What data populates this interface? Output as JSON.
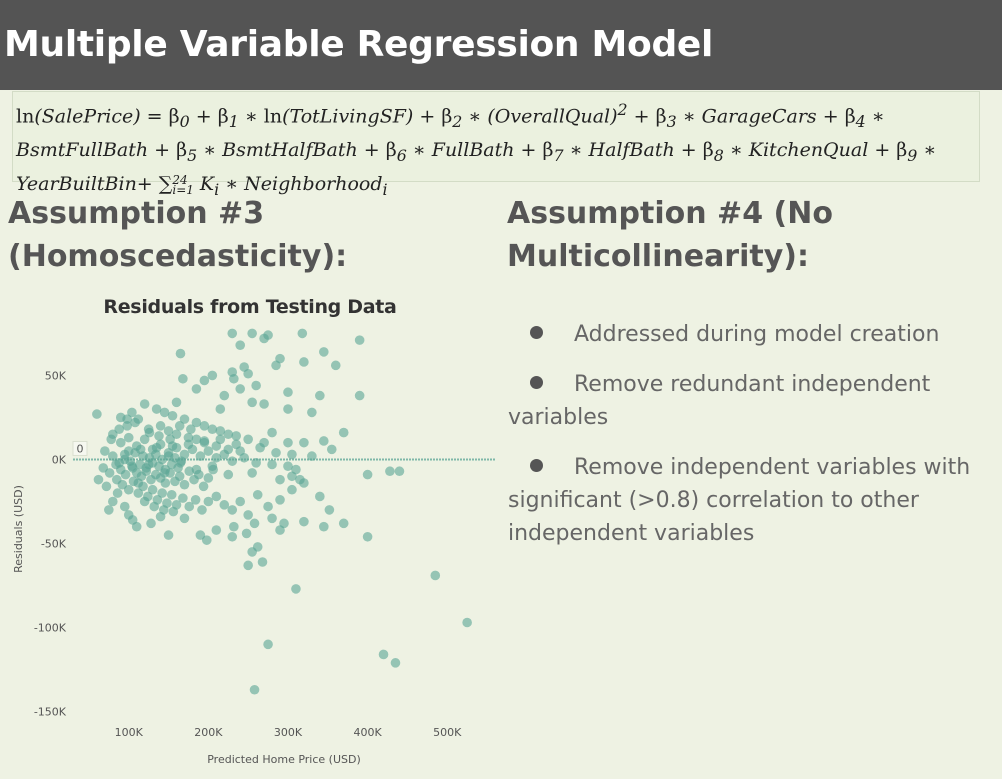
{
  "header": {
    "title": "Multiple Variable Regression Model"
  },
  "formula": {
    "lines": [
      "ln(SalePrice) = β₀ + β₁ ∗ ln(TotLivingSF) + β₂ ∗ (OverallQual)² + β₃ ∗ GarageCars + β₄ ∗",
      "BsmtFullBath + β₅ ∗ BsmtHalfBath + β₆ ∗ FullBath + β₇ ∗ HalfBath + β₈ ∗ KitchenQual + β₉ ∗",
      "YearBuiltBin+ ∑ᵢ₌₁²⁴ Kᵢ ∗ Neighborhoodᵢ"
    ]
  },
  "assumption3": {
    "heading": "Assumption #3 (Homoscedasticity):"
  },
  "assumption4": {
    "heading": "Assumption #4 (No Multicollinearity):",
    "bullets": [
      "Addressed during model creation",
      "Remove redundant independent variables",
      "Remove independent variables with significant (>0.8) correlation to other independent variables"
    ]
  },
  "colors": {
    "point": "#5aa595",
    "reference_line": "#7fb8a8",
    "title_bar": "#545454",
    "background": "#eef2e3"
  },
  "chart_data": {
    "type": "scatter",
    "title": "Residuals from Testing Data",
    "xlabel": "Predicted Home Price (USD)",
    "ylabel": "Residuals (USD)",
    "xlim": [
      30000,
      560000
    ],
    "ylim": [
      -155000,
      80000
    ],
    "x_ticks": [
      100000,
      200000,
      300000,
      400000,
      500000
    ],
    "x_tick_labels": [
      "100K",
      "200K",
      "300K",
      "400K",
      "500K"
    ],
    "y_ticks": [
      50000,
      0,
      -50000,
      -100000,
      -150000
    ],
    "y_tick_labels": [
      "50K",
      "0K",
      "-50K",
      "-100K",
      "-150K"
    ],
    "reference_line": {
      "y": 0,
      "label": "0"
    },
    "points": [
      [
        230000,
        75000
      ],
      [
        255000,
        75000
      ],
      [
        275000,
        74000
      ],
      [
        318000,
        75000
      ],
      [
        390000,
        71000
      ],
      [
        270000,
        72000
      ],
      [
        240000,
        68000
      ],
      [
        345000,
        64000
      ],
      [
        165000,
        63000
      ],
      [
        290000,
        60000
      ],
      [
        360000,
        56000
      ],
      [
        245000,
        55000
      ],
      [
        285000,
        56000
      ],
      [
        320000,
        58000
      ],
      [
        230000,
        52000
      ],
      [
        250000,
        51000
      ],
      [
        205000,
        50000
      ],
      [
        232000,
        48000
      ],
      [
        195000,
        47000
      ],
      [
        260000,
        44000
      ],
      [
        168000,
        48000
      ],
      [
        185000,
        42000
      ],
      [
        240000,
        42000
      ],
      [
        300000,
        40000
      ],
      [
        340000,
        38000
      ],
      [
        390000,
        38000
      ],
      [
        220000,
        38000
      ],
      [
        255000,
        34000
      ],
      [
        160000,
        34000
      ],
      [
        215000,
        30000
      ],
      [
        270000,
        33000
      ],
      [
        300000,
        30000
      ],
      [
        330000,
        28000
      ],
      [
        120000,
        33000
      ],
      [
        135000,
        30000
      ],
      [
        145000,
        28000
      ],
      [
        155000,
        26000
      ],
      [
        170000,
        24000
      ],
      [
        185000,
        22000
      ],
      [
        195000,
        20000
      ],
      [
        205000,
        18000
      ],
      [
        215000,
        17000
      ],
      [
        225000,
        15000
      ],
      [
        235000,
        14000
      ],
      [
        250000,
        12000
      ],
      [
        280000,
        16000
      ],
      [
        300000,
        10000
      ],
      [
        320000,
        10000
      ],
      [
        345000,
        11000
      ],
      [
        370000,
        16000
      ],
      [
        60000,
        27000
      ],
      [
        90000,
        25000
      ],
      [
        98000,
        20000
      ],
      [
        108000,
        22000
      ],
      [
        112000,
        24000
      ],
      [
        125000,
        18000
      ],
      [
        140000,
        20000
      ],
      [
        150000,
        17000
      ],
      [
        160000,
        15000
      ],
      [
        175000,
        13000
      ],
      [
        185000,
        12000
      ],
      [
        195000,
        10000
      ],
      [
        210000,
        8000
      ],
      [
        225000,
        6000
      ],
      [
        240000,
        5000
      ],
      [
        265000,
        7000
      ],
      [
        285000,
        4000
      ],
      [
        305000,
        3000
      ],
      [
        330000,
        2000
      ],
      [
        355000,
        6000
      ],
      [
        80000,
        15000
      ],
      [
        90000,
        10000
      ],
      [
        100000,
        13000
      ],
      [
        110000,
        8000
      ],
      [
        120000,
        12000
      ],
      [
        130000,
        6000
      ],
      [
        140000,
        9000
      ],
      [
        150000,
        4000
      ],
      [
        160000,
        7000
      ],
      [
        170000,
        3000
      ],
      [
        180000,
        6000
      ],
      [
        190000,
        2000
      ],
      [
        200000,
        5000
      ],
      [
        210000,
        1000
      ],
      [
        220000,
        3000
      ],
      [
        230000,
        -1000
      ],
      [
        245000,
        1000
      ],
      [
        260000,
        -2000
      ],
      [
        280000,
        -3000
      ],
      [
        300000,
        -4000
      ],
      [
        70000,
        5000
      ],
      [
        80000,
        2000
      ],
      [
        88000,
        -2000
      ],
      [
        95000,
        3000
      ],
      [
        102000,
        -1000
      ],
      [
        108000,
        4000
      ],
      [
        114000,
        -3000
      ],
      [
        118000,
        2000
      ],
      [
        122000,
        -5000
      ],
      [
        126000,
        1000
      ],
      [
        130000,
        -2000
      ],
      [
        134000,
        3000
      ],
      [
        138000,
        -4000
      ],
      [
        142000,
        0
      ],
      [
        146000,
        -6000
      ],
      [
        150000,
        2000
      ],
      [
        154000,
        -3000
      ],
      [
        158000,
        1000
      ],
      [
        162000,
        -5000
      ],
      [
        166000,
        -1000
      ],
      [
        90000,
        -6000
      ],
      [
        96000,
        -9000
      ],
      [
        104000,
        -4000
      ],
      [
        110000,
        -8000
      ],
      [
        116000,
        -10000
      ],
      [
        122000,
        -7000
      ],
      [
        128000,
        -12000
      ],
      [
        134000,
        -9000
      ],
      [
        140000,
        -11000
      ],
      [
        146000,
        -14000
      ],
      [
        152000,
        -8000
      ],
      [
        158000,
        -13000
      ],
      [
        164000,
        -10000
      ],
      [
        170000,
        -15000
      ],
      [
        176000,
        -7000
      ],
      [
        182000,
        -12000
      ],
      [
        188000,
        -9000
      ],
      [
        194000,
        -16000
      ],
      [
        200000,
        -11000
      ],
      [
        206000,
        -6000
      ],
      [
        85000,
        -12000
      ],
      [
        92000,
        -15000
      ],
      [
        100000,
        -18000
      ],
      [
        106000,
        -13000
      ],
      [
        112000,
        -20000
      ],
      [
        118000,
        -16000
      ],
      [
        124000,
        -22000
      ],
      [
        130000,
        -18000
      ],
      [
        136000,
        -24000
      ],
      [
        142000,
        -20000
      ],
      [
        148000,
        -26000
      ],
      [
        154000,
        -21000
      ],
      [
        160000,
        -27000
      ],
      [
        168000,
        -23000
      ],
      [
        176000,
        -28000
      ],
      [
        184000,
        -24000
      ],
      [
        192000,
        -30000
      ],
      [
        200000,
        -25000
      ],
      [
        210000,
        -22000
      ],
      [
        220000,
        -27000
      ],
      [
        230000,
        -30000
      ],
      [
        240000,
        -25000
      ],
      [
        250000,
        -33000
      ],
      [
        262000,
        -21000
      ],
      [
        275000,
        -28000
      ],
      [
        290000,
        -24000
      ],
      [
        305000,
        -18000
      ],
      [
        320000,
        -14000
      ],
      [
        340000,
        -22000
      ],
      [
        352000,
        -30000
      ],
      [
        400000,
        -9000
      ],
      [
        428000,
        -7000
      ],
      [
        440000,
        -7000
      ],
      [
        305000,
        -10000
      ],
      [
        315000,
        -12000
      ],
      [
        280000,
        -35000
      ],
      [
        295000,
        -38000
      ],
      [
        232000,
        -40000
      ],
      [
        248000,
        -44000
      ],
      [
        258000,
        -38000
      ],
      [
        190000,
        -45000
      ],
      [
        198000,
        -48000
      ],
      [
        210000,
        -42000
      ],
      [
        230000,
        -46000
      ],
      [
        262000,
        -52000
      ],
      [
        290000,
        -42000
      ],
      [
        320000,
        -37000
      ],
      [
        345000,
        -40000
      ],
      [
        370000,
        -38000
      ],
      [
        400000,
        -46000
      ],
      [
        150000,
        -45000
      ],
      [
        110000,
        -40000
      ],
      [
        128000,
        -38000
      ],
      [
        100000,
        -33000
      ],
      [
        80000,
        -25000
      ],
      [
        75000,
        -30000
      ],
      [
        95000,
        -28000
      ],
      [
        105000,
        -36000
      ],
      [
        140000,
        -34000
      ],
      [
        170000,
        -35000
      ],
      [
        255000,
        -55000
      ],
      [
        250000,
        -63000
      ],
      [
        268000,
        -61000
      ],
      [
        310000,
        -77000
      ],
      [
        485000,
        -69000
      ],
      [
        525000,
        -97000
      ],
      [
        420000,
        -116000
      ],
      [
        435000,
        -121000
      ],
      [
        275000,
        -110000
      ],
      [
        258000,
        -137000
      ],
      [
        95000,
        0
      ],
      [
        100000,
        5000
      ],
      [
        105000,
        -5000
      ],
      [
        115000,
        6000
      ],
      [
        125000,
        -3000
      ],
      [
        135000,
        7000
      ],
      [
        145000,
        -8000
      ],
      [
        155000,
        8000
      ],
      [
        165000,
        -2000
      ],
      [
        175000,
        9000
      ],
      [
        185000,
        -6000
      ],
      [
        195000,
        11000
      ],
      [
        205000,
        -4000
      ],
      [
        215000,
        12000
      ],
      [
        225000,
        -9000
      ],
      [
        235000,
        9000
      ],
      [
        255000,
        -8000
      ],
      [
        270000,
        10000
      ],
      [
        290000,
        -12000
      ],
      [
        310000,
        -6000
      ],
      [
        120000,
        -25000
      ],
      [
        132000,
        -28000
      ],
      [
        144000,
        -30000
      ],
      [
        156000,
        -31000
      ],
      [
        112000,
        -14000
      ],
      [
        126000,
        16000
      ],
      [
        138000,
        14000
      ],
      [
        152000,
        12000
      ],
      [
        164000,
        20000
      ],
      [
        178000,
        18000
      ],
      [
        68000,
        -5000
      ],
      [
        76000,
        -8000
      ],
      [
        84000,
        -3000
      ],
      [
        62000,
        -12000
      ],
      [
        72000,
        -16000
      ],
      [
        86000,
        -20000
      ],
      [
        78000,
        12000
      ],
      [
        88000,
        18000
      ],
      [
        98000,
        24000
      ],
      [
        104000,
        28000
      ]
    ]
  }
}
